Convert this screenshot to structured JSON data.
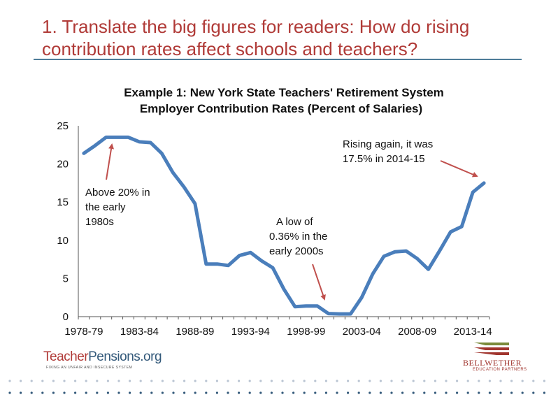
{
  "slide": {
    "title": "1. Translate the big figures for readers: How do rising\ncontribution rates affect schools and teachers?",
    "title_color": "#b03a37",
    "rule_color": "#4e7c99"
  },
  "chart_data": {
    "type": "line",
    "title_line1": "Example 1: New York State Teachers' Retirement System",
    "title_line2": "Employer Contribution Rates (Percent of Salaries)",
    "xlabel": "",
    "ylabel": "",
    "ylim": [
      0,
      25
    ],
    "yticks": [
      "0",
      "5",
      "10",
      "15",
      "20",
      "25"
    ],
    "xticks": [
      "1978-79",
      "1983-84",
      "1988-89",
      "1993-94",
      "1998-99",
      "2003-04",
      "2008-09",
      "2013-14"
    ],
    "grid": false,
    "line_color": "#4a7ebb",
    "x": [
      "1978-79",
      "1979-80",
      "1980-81",
      "1981-82",
      "1982-83",
      "1983-84",
      "1984-85",
      "1985-86",
      "1986-87",
      "1987-88",
      "1988-89",
      "1989-90",
      "1990-91",
      "1991-92",
      "1992-93",
      "1993-94",
      "1994-95",
      "1995-96",
      "1996-97",
      "1997-98",
      "1998-99",
      "1999-00",
      "2000-01",
      "2001-02",
      "2002-03",
      "2003-04",
      "2004-05",
      "2005-06",
      "2006-07",
      "2007-08",
      "2008-09",
      "2009-10",
      "2010-11",
      "2011-12",
      "2012-13",
      "2013-14",
      "2014-15"
    ],
    "values": [
      21.4,
      22.4,
      23.5,
      23.5,
      23.5,
      22.9,
      22.8,
      21.4,
      18.9,
      17.0,
      14.8,
      6.9,
      6.9,
      6.7,
      8.0,
      8.4,
      7.3,
      6.4,
      3.6,
      1.3,
      1.4,
      1.4,
      0.4,
      0.36,
      0.36,
      2.5,
      5.6,
      7.9,
      8.5,
      8.6,
      7.6,
      6.2,
      8.6,
      11.1,
      11.8,
      16.3,
      17.5
    ],
    "annotations": [
      {
        "lines": [
          "Above 20% in",
          "the early",
          "1980s"
        ]
      },
      {
        "lines": [
          "A low of",
          "0.36%  in the",
          "early 2000s"
        ]
      },
      {
        "lines": [
          "Rising again, it was",
          "17.5% in 2014-15"
        ]
      }
    ],
    "arrow_color": "#c0504d"
  },
  "logos": {
    "teacherpensions_part1": "Teacher",
    "teacherpensions_part2": "Pensions.org",
    "teacherpensions_tagline": "FIXING AN UNFAIR AND INSECURE SYSTEM",
    "bellwether_name": "BELLWETHER",
    "bellwether_sub": "EDUCATION PARTNERS"
  }
}
